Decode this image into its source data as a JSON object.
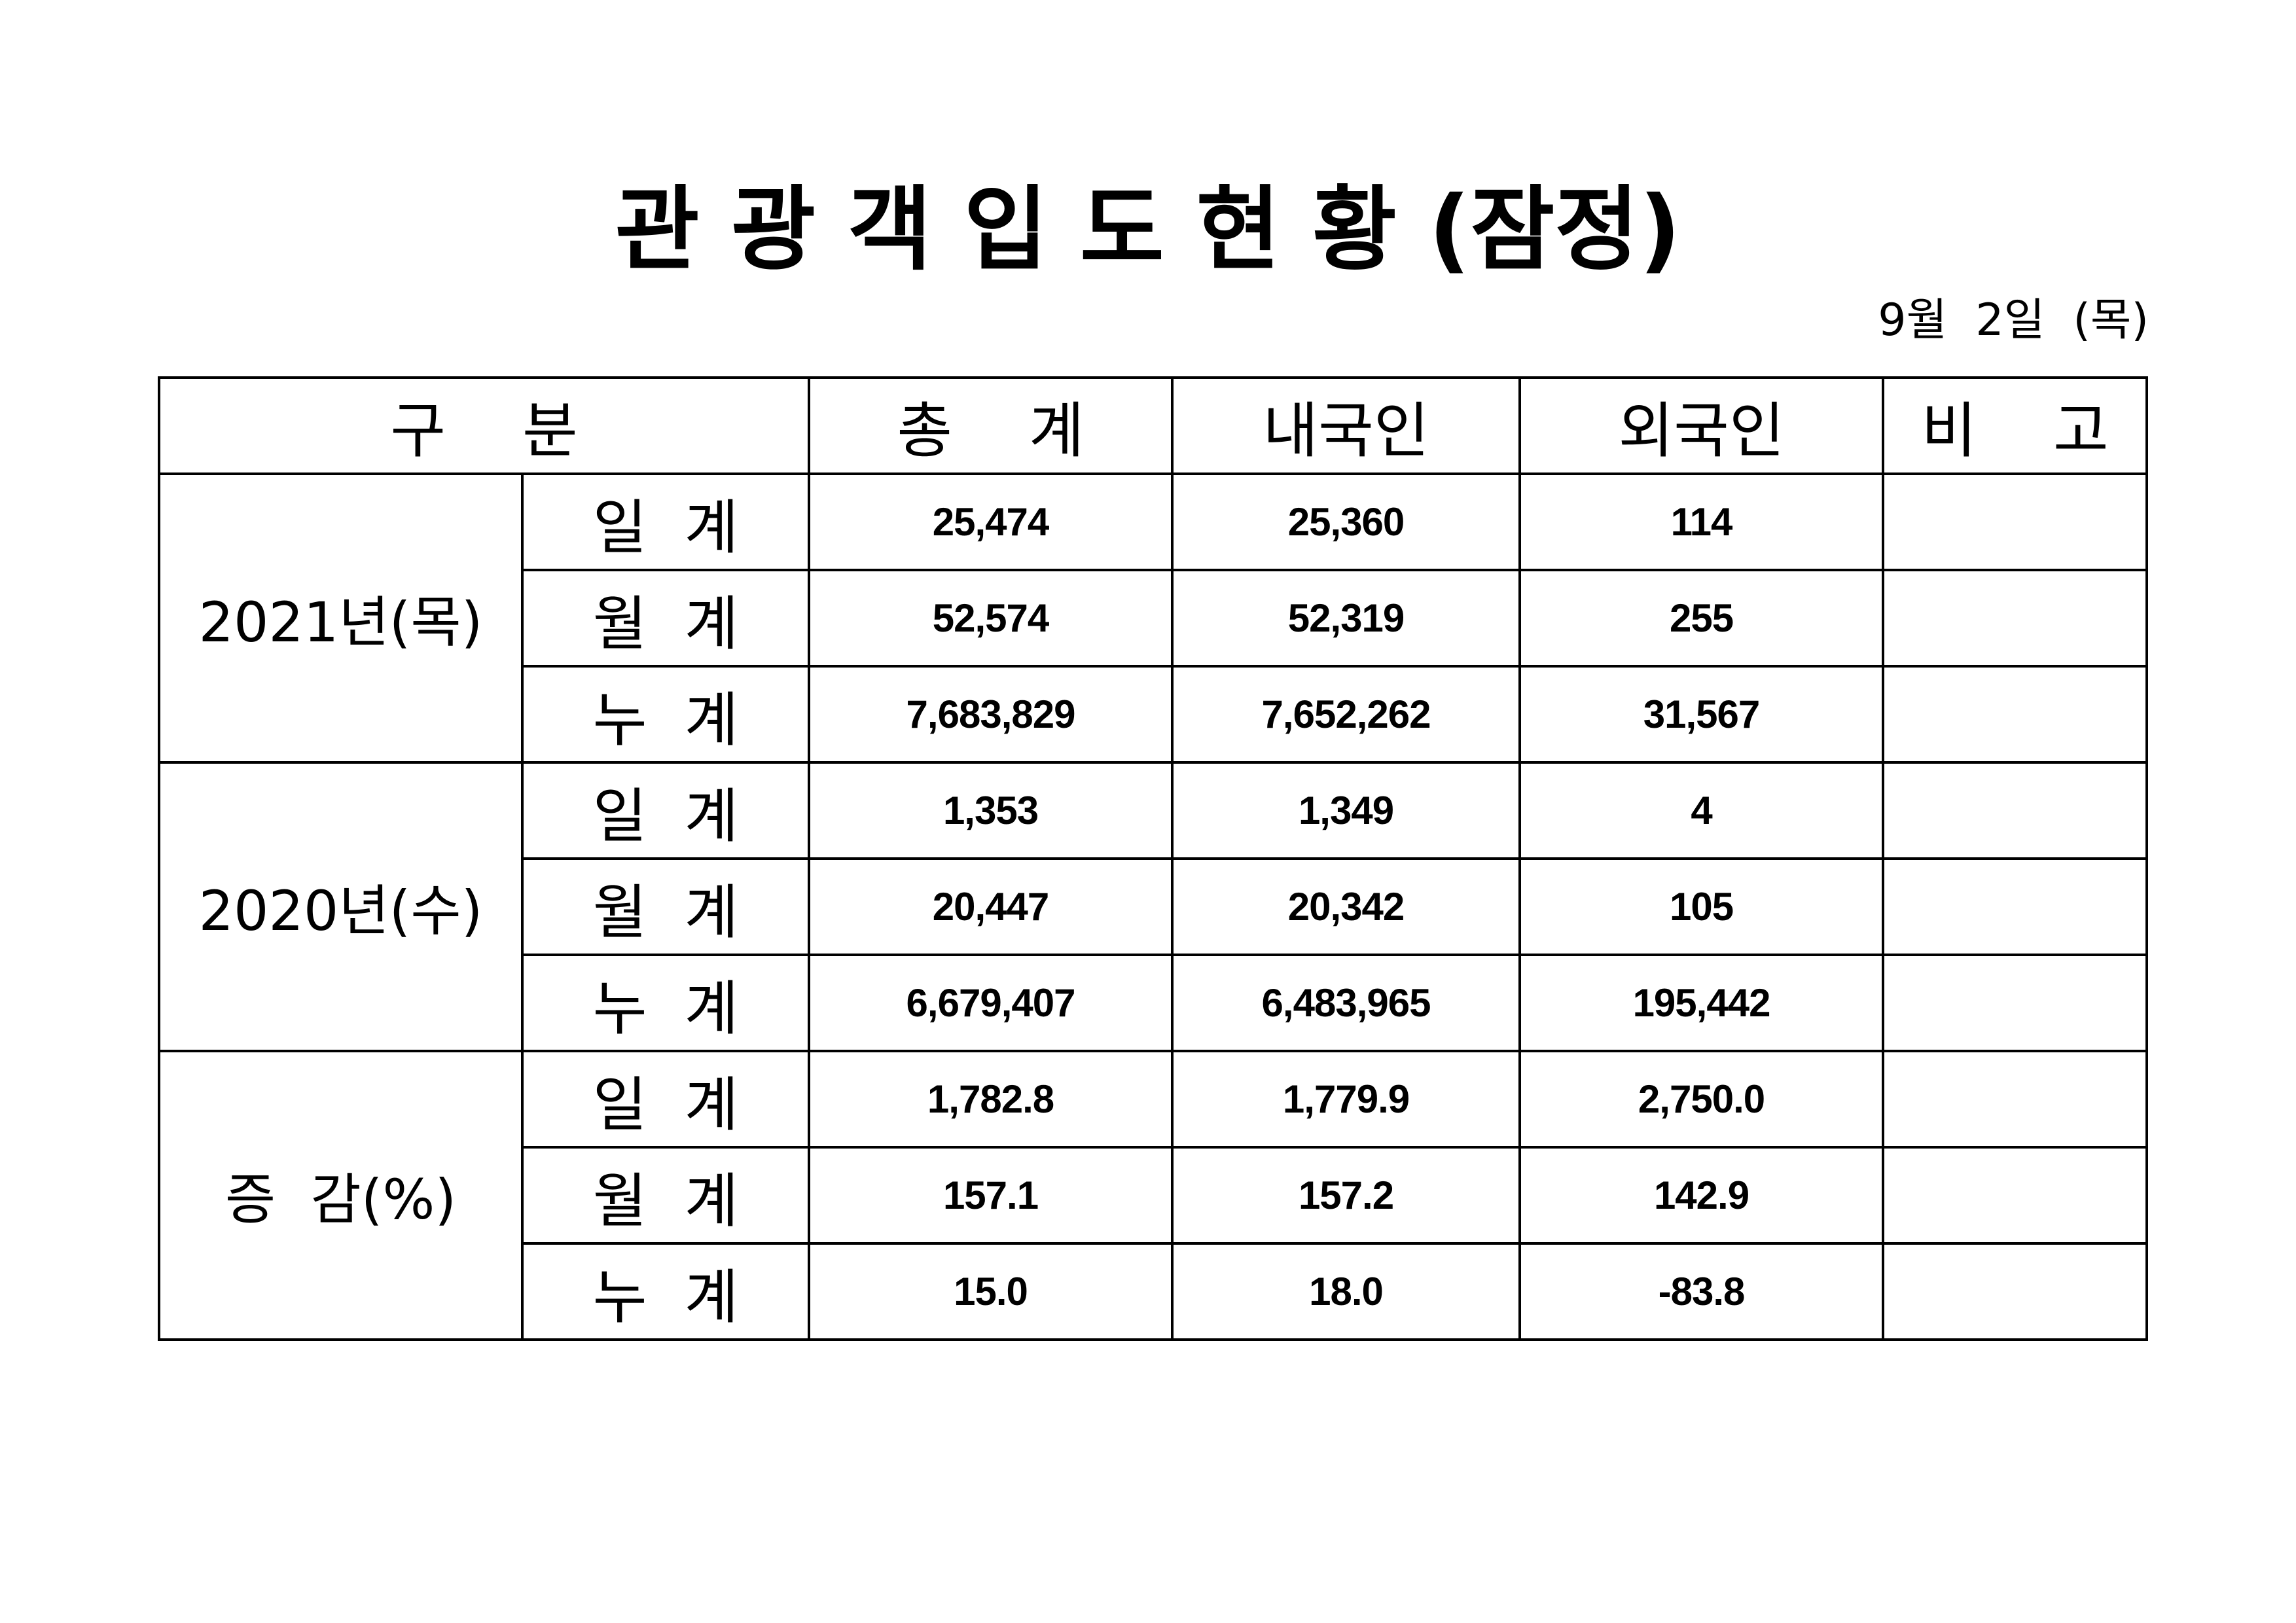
{
  "title": "관 광 객 입 도 현 황 (잠정)",
  "date": "9월  2일  (목)",
  "table": {
    "headers": {
      "category": "구    분",
      "total": "총    계",
      "domestic": "내국인",
      "foreign": "외국인",
      "note": "비    고"
    },
    "groups": [
      {
        "label": "2021년(목)",
        "rows": [
          {
            "type": "일  계",
            "total": "25,474",
            "domestic": "25,360",
            "foreign": "114",
            "note": ""
          },
          {
            "type": "월  계",
            "total": "52,574",
            "domestic": "52,319",
            "foreign": "255",
            "note": ""
          },
          {
            "type": "누  계",
            "total": "7,683,829",
            "domestic": "7,652,262",
            "foreign": "31,567",
            "note": ""
          }
        ]
      },
      {
        "label": "2020년(수)",
        "rows": [
          {
            "type": "일  계",
            "total": "1,353",
            "domestic": "1,349",
            "foreign": "4",
            "note": ""
          },
          {
            "type": "월  계",
            "total": "20,447",
            "domestic": "20,342",
            "foreign": "105",
            "note": ""
          },
          {
            "type": "누  계",
            "total": "6,679,407",
            "domestic": "6,483,965",
            "foreign": "195,442",
            "note": ""
          }
        ]
      },
      {
        "label": "증  감(%)",
        "rows": [
          {
            "type": "일  계",
            "total": "1,782.8",
            "domestic": "1,779.9",
            "foreign": "2,750.0",
            "note": ""
          },
          {
            "type": "월  계",
            "total": "157.1",
            "domestic": "157.2",
            "foreign": "142.9",
            "note": ""
          },
          {
            "type": "누  계",
            "total": "15.0",
            "domestic": "18.0",
            "foreign": "-83.8",
            "note": ""
          }
        ]
      }
    ]
  }
}
